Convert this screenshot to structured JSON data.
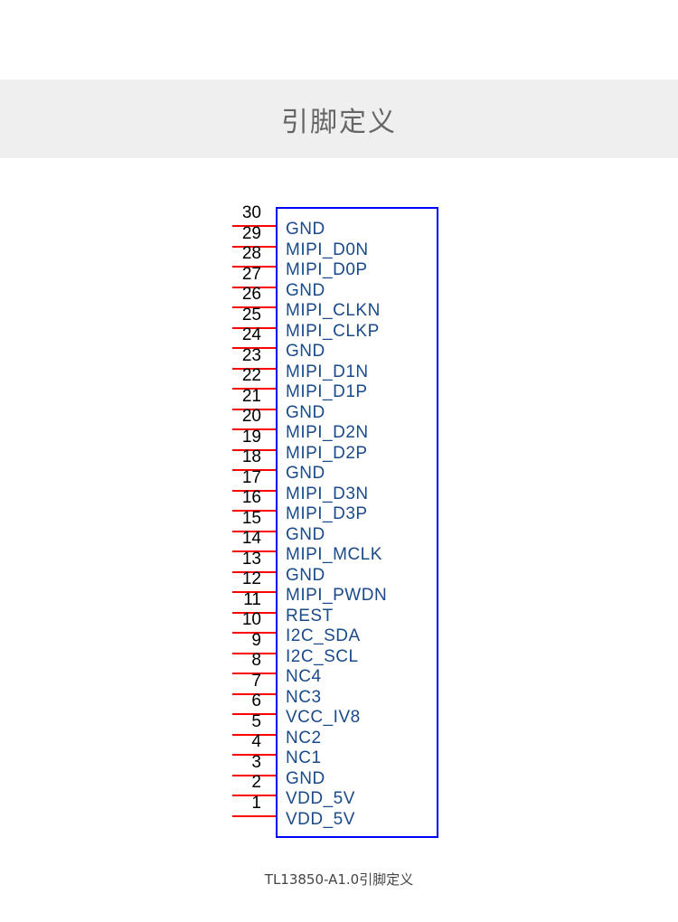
{
  "title": "引脚定义",
  "caption": "TL13850-A1.0引脚定义",
  "colors": {
    "box": "#0000ff",
    "pin_line": "#ff0000",
    "label": "#1a4a8a"
  },
  "pins": [
    {
      "num": "30",
      "label": "GND"
    },
    {
      "num": "29",
      "label": "MIPI_D0N"
    },
    {
      "num": "28",
      "label": "MIPI_D0P"
    },
    {
      "num": "27",
      "label": "GND"
    },
    {
      "num": "26",
      "label": "MIPI_CLKN"
    },
    {
      "num": "25",
      "label": "MIPI_CLKP"
    },
    {
      "num": "24",
      "label": "GND"
    },
    {
      "num": "23",
      "label": "MIPI_D1N"
    },
    {
      "num": "22",
      "label": "MIPI_D1P"
    },
    {
      "num": "21",
      "label": "GND"
    },
    {
      "num": "20",
      "label": "MIPI_D2N"
    },
    {
      "num": "19",
      "label": "MIPI_D2P"
    },
    {
      "num": "18",
      "label": "GND"
    },
    {
      "num": "17",
      "label": "MIPI_D3N"
    },
    {
      "num": "16",
      "label": "MIPI_D3P"
    },
    {
      "num": "15",
      "label": "GND"
    },
    {
      "num": "14",
      "label": "MIPI_MCLK"
    },
    {
      "num": "13",
      "label": "GND"
    },
    {
      "num": "12",
      "label": "MIPI_PWDN"
    },
    {
      "num": "11",
      "label": "REST"
    },
    {
      "num": "10",
      "label": "I2C_SDA"
    },
    {
      "num": "9",
      "label": "I2C_SCL"
    },
    {
      "num": "8",
      "label": "NC4"
    },
    {
      "num": "7",
      "label": "NC3"
    },
    {
      "num": "6",
      "label": "VCC_IV8"
    },
    {
      "num": "5",
      "label": "NC2"
    },
    {
      "num": "4",
      "label": "NC1"
    },
    {
      "num": "3",
      "label": "GND"
    },
    {
      "num": "2",
      "label": "VDD_5V"
    },
    {
      "num": "1",
      "label": "VDD_5V"
    }
  ]
}
